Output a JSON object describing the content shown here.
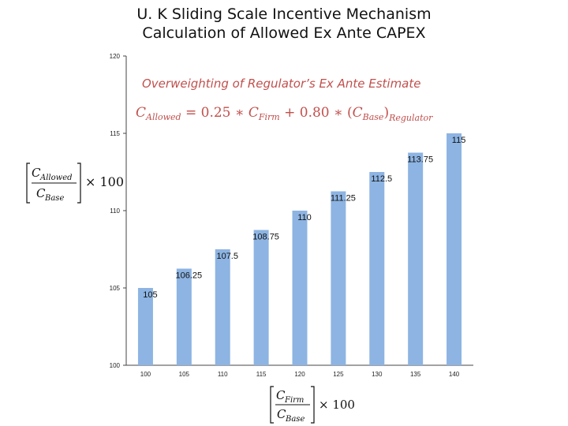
{
  "title": {
    "line1": "U. K Sliding Scale Incentive Mechanism",
    "line2": "Calculation of Allowed Ex Ante CAPEX"
  },
  "annotation": {
    "heading": "Overweighting of Regulator’s Ex Ante Estimate",
    "formula": "C_Allowed = 0.25 * C_Firm + 0.80 * (C_Base)_Regulator"
  },
  "chart_data": {
    "type": "bar",
    "categories": [
      "100",
      "105",
      "110",
      "115",
      "120",
      "125",
      "130",
      "135",
      "140"
    ],
    "values": [
      105,
      106.25,
      107.5,
      108.75,
      110,
      111.25,
      112.5,
      113.75,
      115
    ],
    "value_labels": [
      "105",
      "106.25",
      "107.5",
      "108.75",
      "110",
      "111.25",
      "112.5",
      "113.75",
      "115"
    ],
    "ylim": [
      100,
      120
    ],
    "yticks": [
      "100",
      "105",
      "110",
      "115",
      "120"
    ],
    "ylabel": "[C_Allowed / C_Base] × 100",
    "xlabel": "[C_Firm / C_Base] × 100",
    "bar_color": "#8db4e2",
    "grid": false
  }
}
